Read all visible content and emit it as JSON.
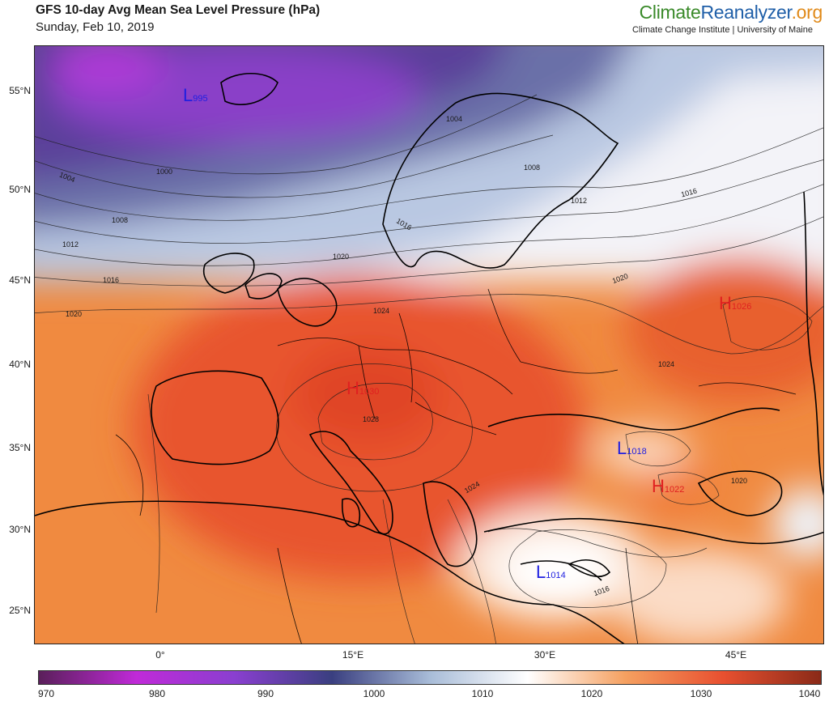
{
  "header": {
    "title": "GFS 10-day Avg Mean Sea Level Pressure (hPa)",
    "date": "Sunday, Feb 10, 2019",
    "brand_part1": "Climate",
    "brand_part2": "Reanalyzer",
    "brand_part3": ".org",
    "institution": "Climate Change Institute | University of Maine"
  },
  "map": {
    "lat_labels": [
      "55°N",
      "50°N",
      "45°N",
      "40°N",
      "35°N",
      "30°N",
      "25°N"
    ],
    "lon_labels": [
      "0°",
      "15°E",
      "30°E",
      "45°E"
    ],
    "isobar_labels": [
      "1004",
      "1000",
      "1008",
      "1012",
      "1016",
      "1020",
      "1024",
      "1028",
      "1026",
      "1022",
      "1018",
      "1014"
    ],
    "pressure_centers": [
      {
        "type": "L",
        "value": "995",
        "color": "#2020e0"
      },
      {
        "type": "H",
        "value": "1030",
        "color": "#e02020"
      },
      {
        "type": "H",
        "value": "1026",
        "color": "#e02020"
      },
      {
        "type": "L",
        "value": "1018",
        "color": "#2020e0"
      },
      {
        "type": "H",
        "value": "1022",
        "color": "#e02020"
      },
      {
        "type": "L",
        "value": "1014",
        "color": "#2020e0"
      }
    ]
  },
  "colorbar": {
    "ticks": [
      "970",
      "980",
      "990",
      "1000",
      "1010",
      "1020",
      "1030",
      "1040"
    ],
    "stops": [
      "#5a1f5a",
      "#c02ad8",
      "#8a3fd0",
      "#3a3f80",
      "#a8bcd8",
      "#ffffff",
      "#f5a060",
      "#e85030",
      "#8a2a18"
    ]
  }
}
